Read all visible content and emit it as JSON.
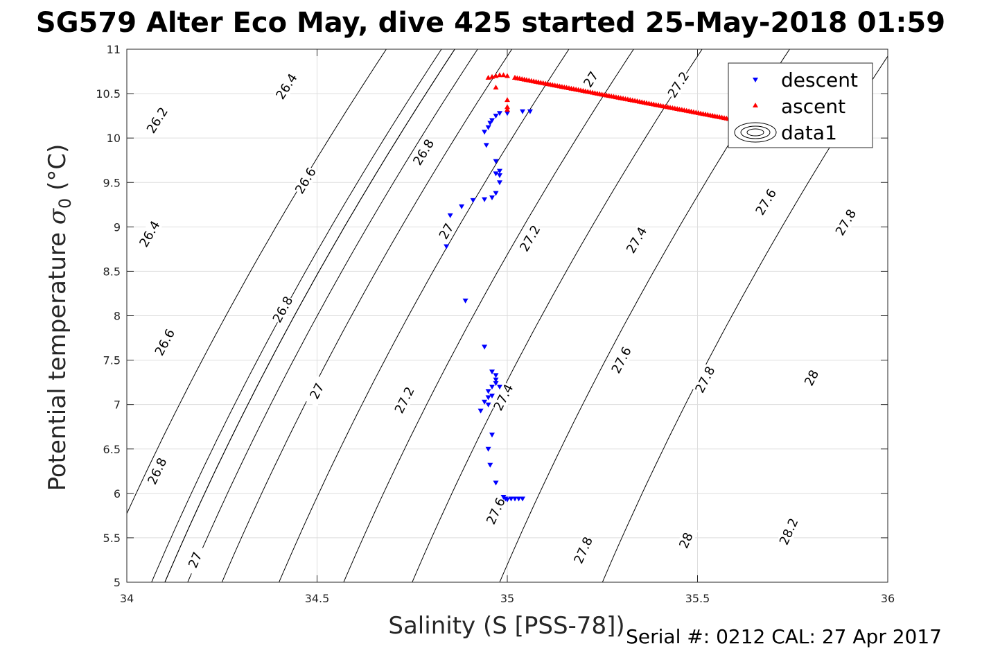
{
  "title": "SG579 Alter Eco May, dive 425 started 25-May-2018 01:59",
  "footer": "Serial #: 0212  CAL: 27 Apr 2017",
  "chart_data": {
    "type": "scatter",
    "xlabel": "Salinity (S [PSS-78])",
    "ylabel_main": "Potential temperature ",
    "ylabel_sigma": "σ",
    "ylabel_sub": "0",
    "ylabel_unit": " (°C)",
    "xlim": [
      34,
      36
    ],
    "ylim": [
      5,
      11
    ],
    "x_ticks": [
      34,
      34.5,
      35,
      35.5,
      36
    ],
    "x_tick_labels": [
      "34",
      "34.5",
      "35",
      "35.5",
      "36"
    ],
    "y_ticks": [
      5,
      5.5,
      6,
      6.5,
      7,
      7.5,
      8,
      8.5,
      9,
      9.5,
      10,
      10.5,
      11
    ],
    "y_tick_labels": [
      "5",
      "5.5",
      "6",
      "6.5",
      "7",
      "7.5",
      "8",
      "8.5",
      "9",
      "9.5",
      "10",
      "10.5",
      "11"
    ],
    "grid": true,
    "legend_position": "top-right",
    "legend": [
      "descent",
      "ascent",
      "data1"
    ],
    "contours": [
      {
        "label": "26.2",
        "s0": 33.92,
        "slope": 0.1,
        "label_at": [
          [
            34.08,
            10.2
          ]
        ]
      },
      {
        "label": "26.4",
        "s0": 34.065,
        "slope": 0.1,
        "label_at": [
          [
            34.06,
            8.92
          ],
          [
            34.42,
            10.58
          ]
        ]
      },
      {
        "label": "26.6",
        "s0": 34.1,
        "slope": 0.1,
        "label_at": [
          [
            34.1,
            7.7
          ],
          [
            34.47,
            9.52
          ]
        ]
      },
      {
        "label": "26.8",
        "s0": 34.1,
        "slope": 0.1,
        "label_at": [
          [
            34.08,
            6.25
          ],
          [
            34.41,
            8.07
          ],
          [
            34.78,
            9.84
          ]
        ]
      },
      {
        "label": "27",
        "s0": 34.16,
        "slope": 0.1,
        "label_at": [
          [
            34.18,
            5.25
          ],
          [
            34.5,
            7.15
          ],
          [
            34.84,
            8.95
          ],
          [
            35.22,
            10.66
          ]
        ]
      },
      {
        "label": "27.2",
        "s0": 34.25,
        "slope": 0.1,
        "label_at": [
          [
            34.73,
            7.05
          ],
          [
            35.06,
            8.87
          ],
          [
            35.45,
            10.6
          ]
        ]
      },
      {
        "label": "27.4",
        "s0": 34.4,
        "slope": 0.1,
        "label_at": [
          [
            34.99,
            7.08
          ],
          [
            35.34,
            8.85
          ]
        ]
      },
      {
        "label": "27.6",
        "s0": 34.57,
        "slope": 0.1,
        "label_at": [
          [
            34.97,
            5.8
          ],
          [
            35.3,
            7.5
          ],
          [
            35.68,
            9.28
          ]
        ]
      },
      {
        "label": "27.8",
        "s0": 34.75,
        "slope": 0.1,
        "label_at": [
          [
            35.2,
            5.36
          ],
          [
            35.52,
            7.28
          ],
          [
            35.89,
            9.05
          ]
        ]
      },
      {
        "label": "28",
        "s0": 34.98,
        "slope": 0.1,
        "label_at": [
          [
            35.47,
            5.47
          ],
          [
            35.8,
            7.3
          ]
        ]
      },
      {
        "label": "28.2",
        "s0": 35.25,
        "slope": 0.1,
        "label_at": [
          [
            35.74,
            5.57
          ]
        ]
      }
    ],
    "series": [
      {
        "name": "descent",
        "color": "#0000ff",
        "marker": "triangle-down",
        "points": [
          [
            34.85,
            9.13
          ],
          [
            34.84,
            8.78
          ],
          [
            34.88,
            9.23
          ],
          [
            34.91,
            9.3
          ],
          [
            34.94,
            9.31
          ],
          [
            34.96,
            9.33
          ],
          [
            34.97,
            9.38
          ],
          [
            34.98,
            9.5
          ],
          [
            34.98,
            9.58
          ],
          [
            34.97,
            9.6
          ],
          [
            34.98,
            9.63
          ],
          [
            34.97,
            9.74
          ],
          [
            34.945,
            9.92
          ],
          [
            34.94,
            10.07
          ],
          [
            34.95,
            10.12
          ],
          [
            34.955,
            10.17
          ],
          [
            34.96,
            10.2
          ],
          [
            34.97,
            10.25
          ],
          [
            34.98,
            10.28
          ],
          [
            35.0,
            10.28
          ],
          [
            35.04,
            10.3
          ],
          [
            35.06,
            10.3
          ],
          [
            34.89,
            8.17
          ],
          [
            34.94,
            7.65
          ],
          [
            34.96,
            7.37
          ],
          [
            34.97,
            7.33
          ],
          [
            34.97,
            7.28
          ],
          [
            34.97,
            7.24
          ],
          [
            34.98,
            7.2
          ],
          [
            34.96,
            7.2
          ],
          [
            34.95,
            7.15
          ],
          [
            34.96,
            7.1
          ],
          [
            34.95,
            7.08
          ],
          [
            34.94,
            7.03
          ],
          [
            34.95,
            7.0
          ],
          [
            34.93,
            6.93
          ],
          [
            34.96,
            6.66
          ],
          [
            34.95,
            6.5
          ],
          [
            34.955,
            6.32
          ],
          [
            34.97,
            6.12
          ],
          [
            34.99,
            5.96
          ],
          [
            34.995,
            5.94
          ],
          [
            35.0,
            5.93
          ],
          [
            35.01,
            5.94
          ],
          [
            35.02,
            5.94
          ],
          [
            35.03,
            5.94
          ],
          [
            35.04,
            5.94
          ]
        ]
      },
      {
        "name": "ascent",
        "color": "#ff0000",
        "marker": "triangle-up",
        "points": [
          [
            34.95,
            10.68
          ],
          [
            34.96,
            10.69
          ],
          [
            34.97,
            10.7
          ],
          [
            34.98,
            10.71
          ],
          [
            34.99,
            10.71
          ],
          [
            35.0,
            10.7
          ],
          [
            34.97,
            10.57
          ],
          [
            35.0,
            10.43
          ],
          [
            35.0,
            10.35
          ],
          [
            35.0,
            10.32
          ],
          [
            35.02,
            10.68
          ],
          [
            35.7,
            10.12
          ]
        ]
      }
    ]
  }
}
